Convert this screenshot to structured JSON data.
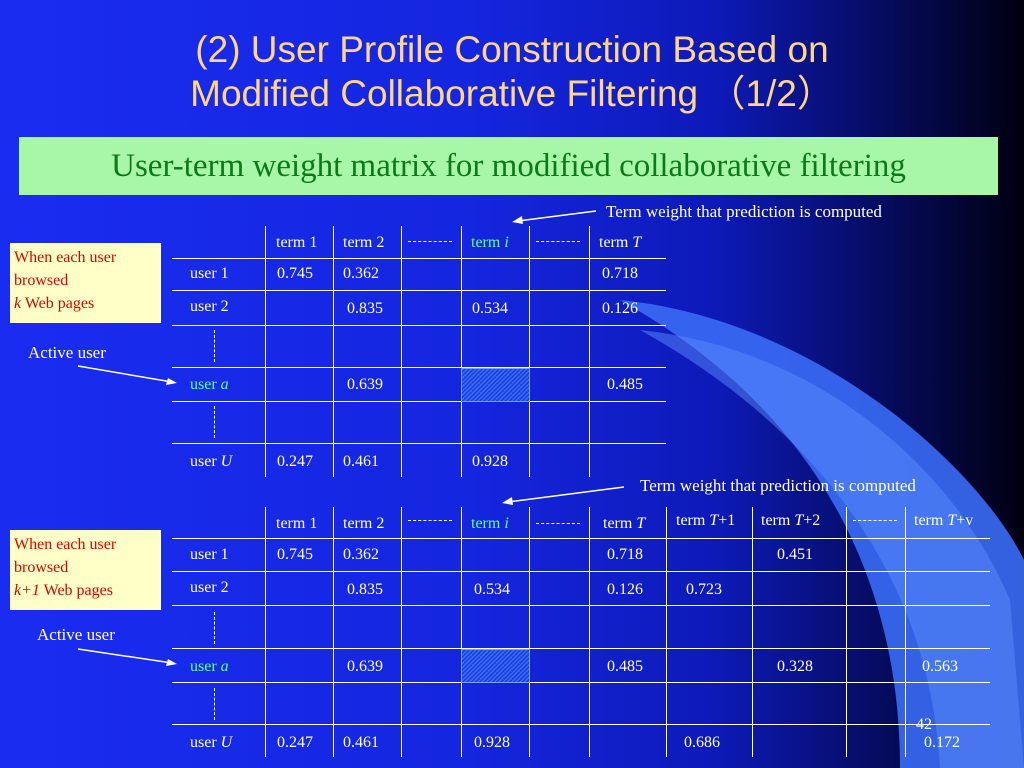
{
  "title": {
    "line1": "(2) User Profile Construction Based on",
    "line2": "Modified Collaborative Filtering （1/2）"
  },
  "banner": "User-term weight matrix for modified collaborative filtering",
  "callout_top": "Term weight that prediction is computed",
  "callout_bottom": "Term weight that prediction is computed",
  "note_top": {
    "line1": "When each user",
    "line2": "browsed",
    "var": "k",
    "rest": " Web pages"
  },
  "note_bottom": {
    "line1": "When each user",
    "line2": "browsed",
    "var": "k+1",
    "rest": " Web pages"
  },
  "active_user_top": "Active user",
  "active_user_bottom": "Active user",
  "table1": {
    "headers": [
      "term 1",
      "term 2",
      "term ",
      "term "
    ],
    "header_vars": [
      "",
      "",
      "i",
      "T"
    ],
    "rows": [
      [
        "user 1",
        "0.745",
        "0.362",
        "",
        "0.718"
      ],
      [
        "user 2",
        "",
        "0.835",
        "0.534",
        "0.126"
      ],
      [
        "user a",
        "",
        "0.639",
        "",
        "0.485"
      ],
      [
        "user U",
        "0.247",
        "0.461",
        "0.928",
        ""
      ]
    ]
  },
  "table2": {
    "headers": [
      "term 1",
      "term 2",
      "term ",
      "term ",
      "term ",
      "term ",
      "term "
    ],
    "header_vars": [
      "",
      "",
      "i",
      "T",
      "T",
      "T",
      "T"
    ],
    "header_suffix": [
      "",
      "",
      "",
      "",
      "+1",
      "+2",
      "+v"
    ],
    "rows": [
      [
        "user 1",
        "0.745",
        "0.362",
        "",
        "0.718",
        "",
        "0.451",
        ""
      ],
      [
        "user 2",
        "",
        "0.835",
        "0.534",
        "0.126",
        "0.723",
        "",
        ""
      ],
      [
        "user a",
        "",
        "0.639",
        "",
        "0.485",
        "",
        "0.328",
        "0.563"
      ],
      [
        "user U",
        "0.247",
        "0.461",
        "0.928",
        "",
        "0.686",
        "",
        "0.172"
      ]
    ]
  },
  "user_labels": {
    "user": "user ",
    "a": "a",
    "U": "U"
  },
  "page_number": "42"
}
